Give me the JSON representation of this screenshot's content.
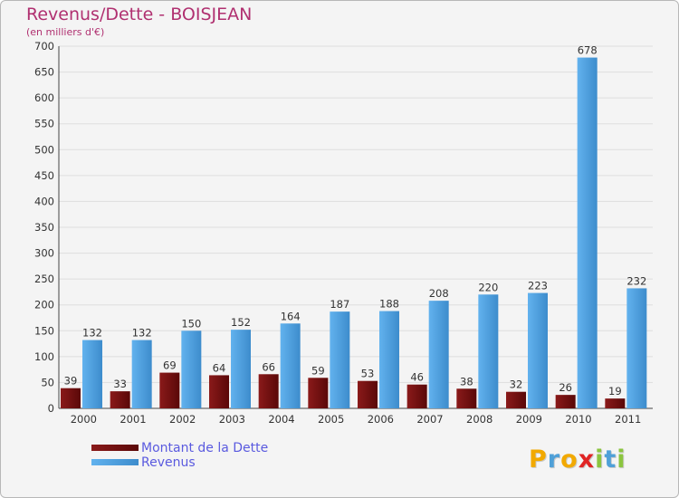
{
  "chart_data": {
    "type": "bar",
    "title": "Revenus/Dette - BOISJEAN",
    "subtitle": "(en milliers d'€)",
    "categories": [
      "2000",
      "2001",
      "2002",
      "2003",
      "2004",
      "2005",
      "2006",
      "2007",
      "2008",
      "2009",
      "2010",
      "2011"
    ],
    "series": [
      {
        "name": "Montant de la Dette",
        "color": "#6e0c0c",
        "values": [
          39,
          33,
          69,
          64,
          66,
          59,
          53,
          46,
          38,
          32,
          26,
          19
        ]
      },
      {
        "name": "Revenus",
        "color": "#4f9fdf",
        "values": [
          132,
          132,
          150,
          152,
          164,
          187,
          188,
          208,
          220,
          223,
          678,
          232
        ]
      }
    ],
    "xlabel": "",
    "ylabel": "",
    "ylim": [
      0,
      700
    ],
    "yticks": [
      0,
      50,
      100,
      150,
      200,
      250,
      300,
      350,
      400,
      450,
      500,
      550,
      600,
      650,
      700
    ],
    "grid": true,
    "legend": "bottom-left"
  },
  "logo": {
    "letters": [
      "P",
      "r",
      "o",
      "x",
      "i",
      "t",
      "i"
    ],
    "colors": [
      "#f2a900",
      "#4fa0d8",
      "#f2a900",
      "#e02424",
      "#8bc53f",
      "#4fa0d8",
      "#8bc53f"
    ]
  }
}
